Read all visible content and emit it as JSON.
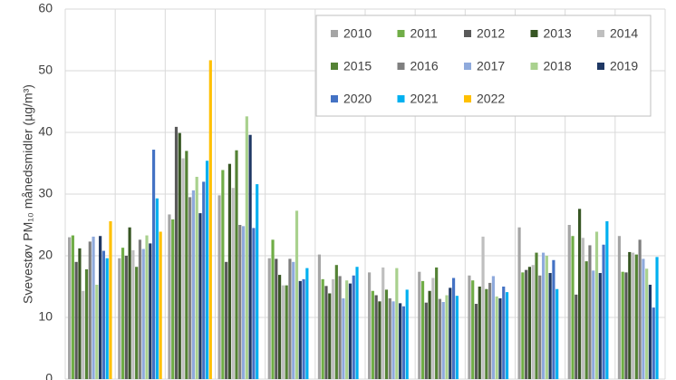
{
  "chart_data": {
    "type": "bar",
    "y_label": "Svevestøv PM₁₀ månedsmidler (µg/m³)",
    "categories": [
      null,
      null,
      null,
      null,
      null,
      null,
      null,
      null,
      null,
      null,
      null,
      null
    ],
    "ylim": [
      0,
      60
    ],
    "yticks": [
      0,
      10,
      20,
      30,
      40,
      50,
      60
    ],
    "grid": true,
    "legend": "top-right",
    "series": [
      {
        "name": "2010",
        "color": "#a5a5a5",
        "values": [
          23,
          19.6,
          26.7,
          29.8,
          19.6,
          20.2,
          17.3,
          17.4,
          16.8,
          24.6,
          25,
          23.2
        ]
      },
      {
        "name": "2011",
        "color": "#70ad47",
        "values": [
          23.3,
          21.3,
          25.9,
          33.9,
          22.6,
          16.2,
          14.3,
          15.9,
          16,
          17.3,
          23.2,
          17.4
        ]
      },
      {
        "name": "2012",
        "color": "#595959",
        "values": [
          19,
          20,
          40.9,
          19,
          19.5,
          15.1,
          13.6,
          12.4,
          12.2,
          17.7,
          13.7,
          17.3
        ]
      },
      {
        "name": "2013",
        "color": "#375623",
        "values": [
          21.2,
          24.6,
          39.9,
          34.9,
          16.9,
          13.9,
          12.6,
          14.3,
          15,
          18.2,
          27.6,
          20.6
        ]
      },
      {
        "name": "2014",
        "color": "#bfbfbf",
        "values": [
          14.3,
          20.9,
          35.8,
          31,
          15.2,
          16.2,
          18.1,
          16.4,
          23.1,
          18.5,
          22.9,
          20.5
        ]
      },
      {
        "name": "2015",
        "color": "#548235",
        "values": [
          17.8,
          18.2,
          37,
          37.1,
          15.2,
          18.5,
          14.5,
          18.1,
          14.6,
          20.5,
          19.1,
          20.2
        ]
      },
      {
        "name": "2016",
        "color": "#7f7f7f",
        "values": [
          22.3,
          22.6,
          29.5,
          25,
          19.5,
          16.7,
          13.1,
          13,
          15.6,
          16.8,
          21.7,
          22.6
        ]
      },
      {
        "name": "2017",
        "color": "#8faadc",
        "values": [
          23.1,
          21.1,
          30.6,
          24.8,
          19,
          13.1,
          12.6,
          12.5,
          16.7,
          20.5,
          17.6,
          19.5
        ]
      },
      {
        "name": "2018",
        "color": "#a9d18e",
        "values": [
          15.3,
          23.3,
          32.8,
          42.6,
          27.3,
          16,
          18,
          13.6,
          13.4,
          20,
          23.9,
          17.9
        ]
      },
      {
        "name": "2019",
        "color": "#1f3864",
        "values": [
          23.2,
          22,
          26.9,
          39.6,
          15.9,
          15.5,
          12.3,
          14.8,
          13.1,
          17.2,
          17.2,
          15.3
        ]
      },
      {
        "name": "2020",
        "color": "#4472c4",
        "values": [
          20.8,
          37.2,
          32,
          24.5,
          16.2,
          16.8,
          11.8,
          16.4,
          15,
          19.3,
          21.8,
          11.6
        ]
      },
      {
        "name": "2021",
        "color": "#00b0f0",
        "values": [
          19.6,
          29.3,
          35.4,
          31.6,
          18,
          18.2,
          14.5,
          13.5,
          14.1,
          14.6,
          25.6,
          19.8
        ]
      },
      {
        "name": "2022",
        "color": "#ffc000",
        "values": [
          25.6,
          23.9,
          51.7,
          null,
          null,
          null,
          null,
          null,
          null,
          null,
          null,
          null
        ]
      }
    ]
  }
}
